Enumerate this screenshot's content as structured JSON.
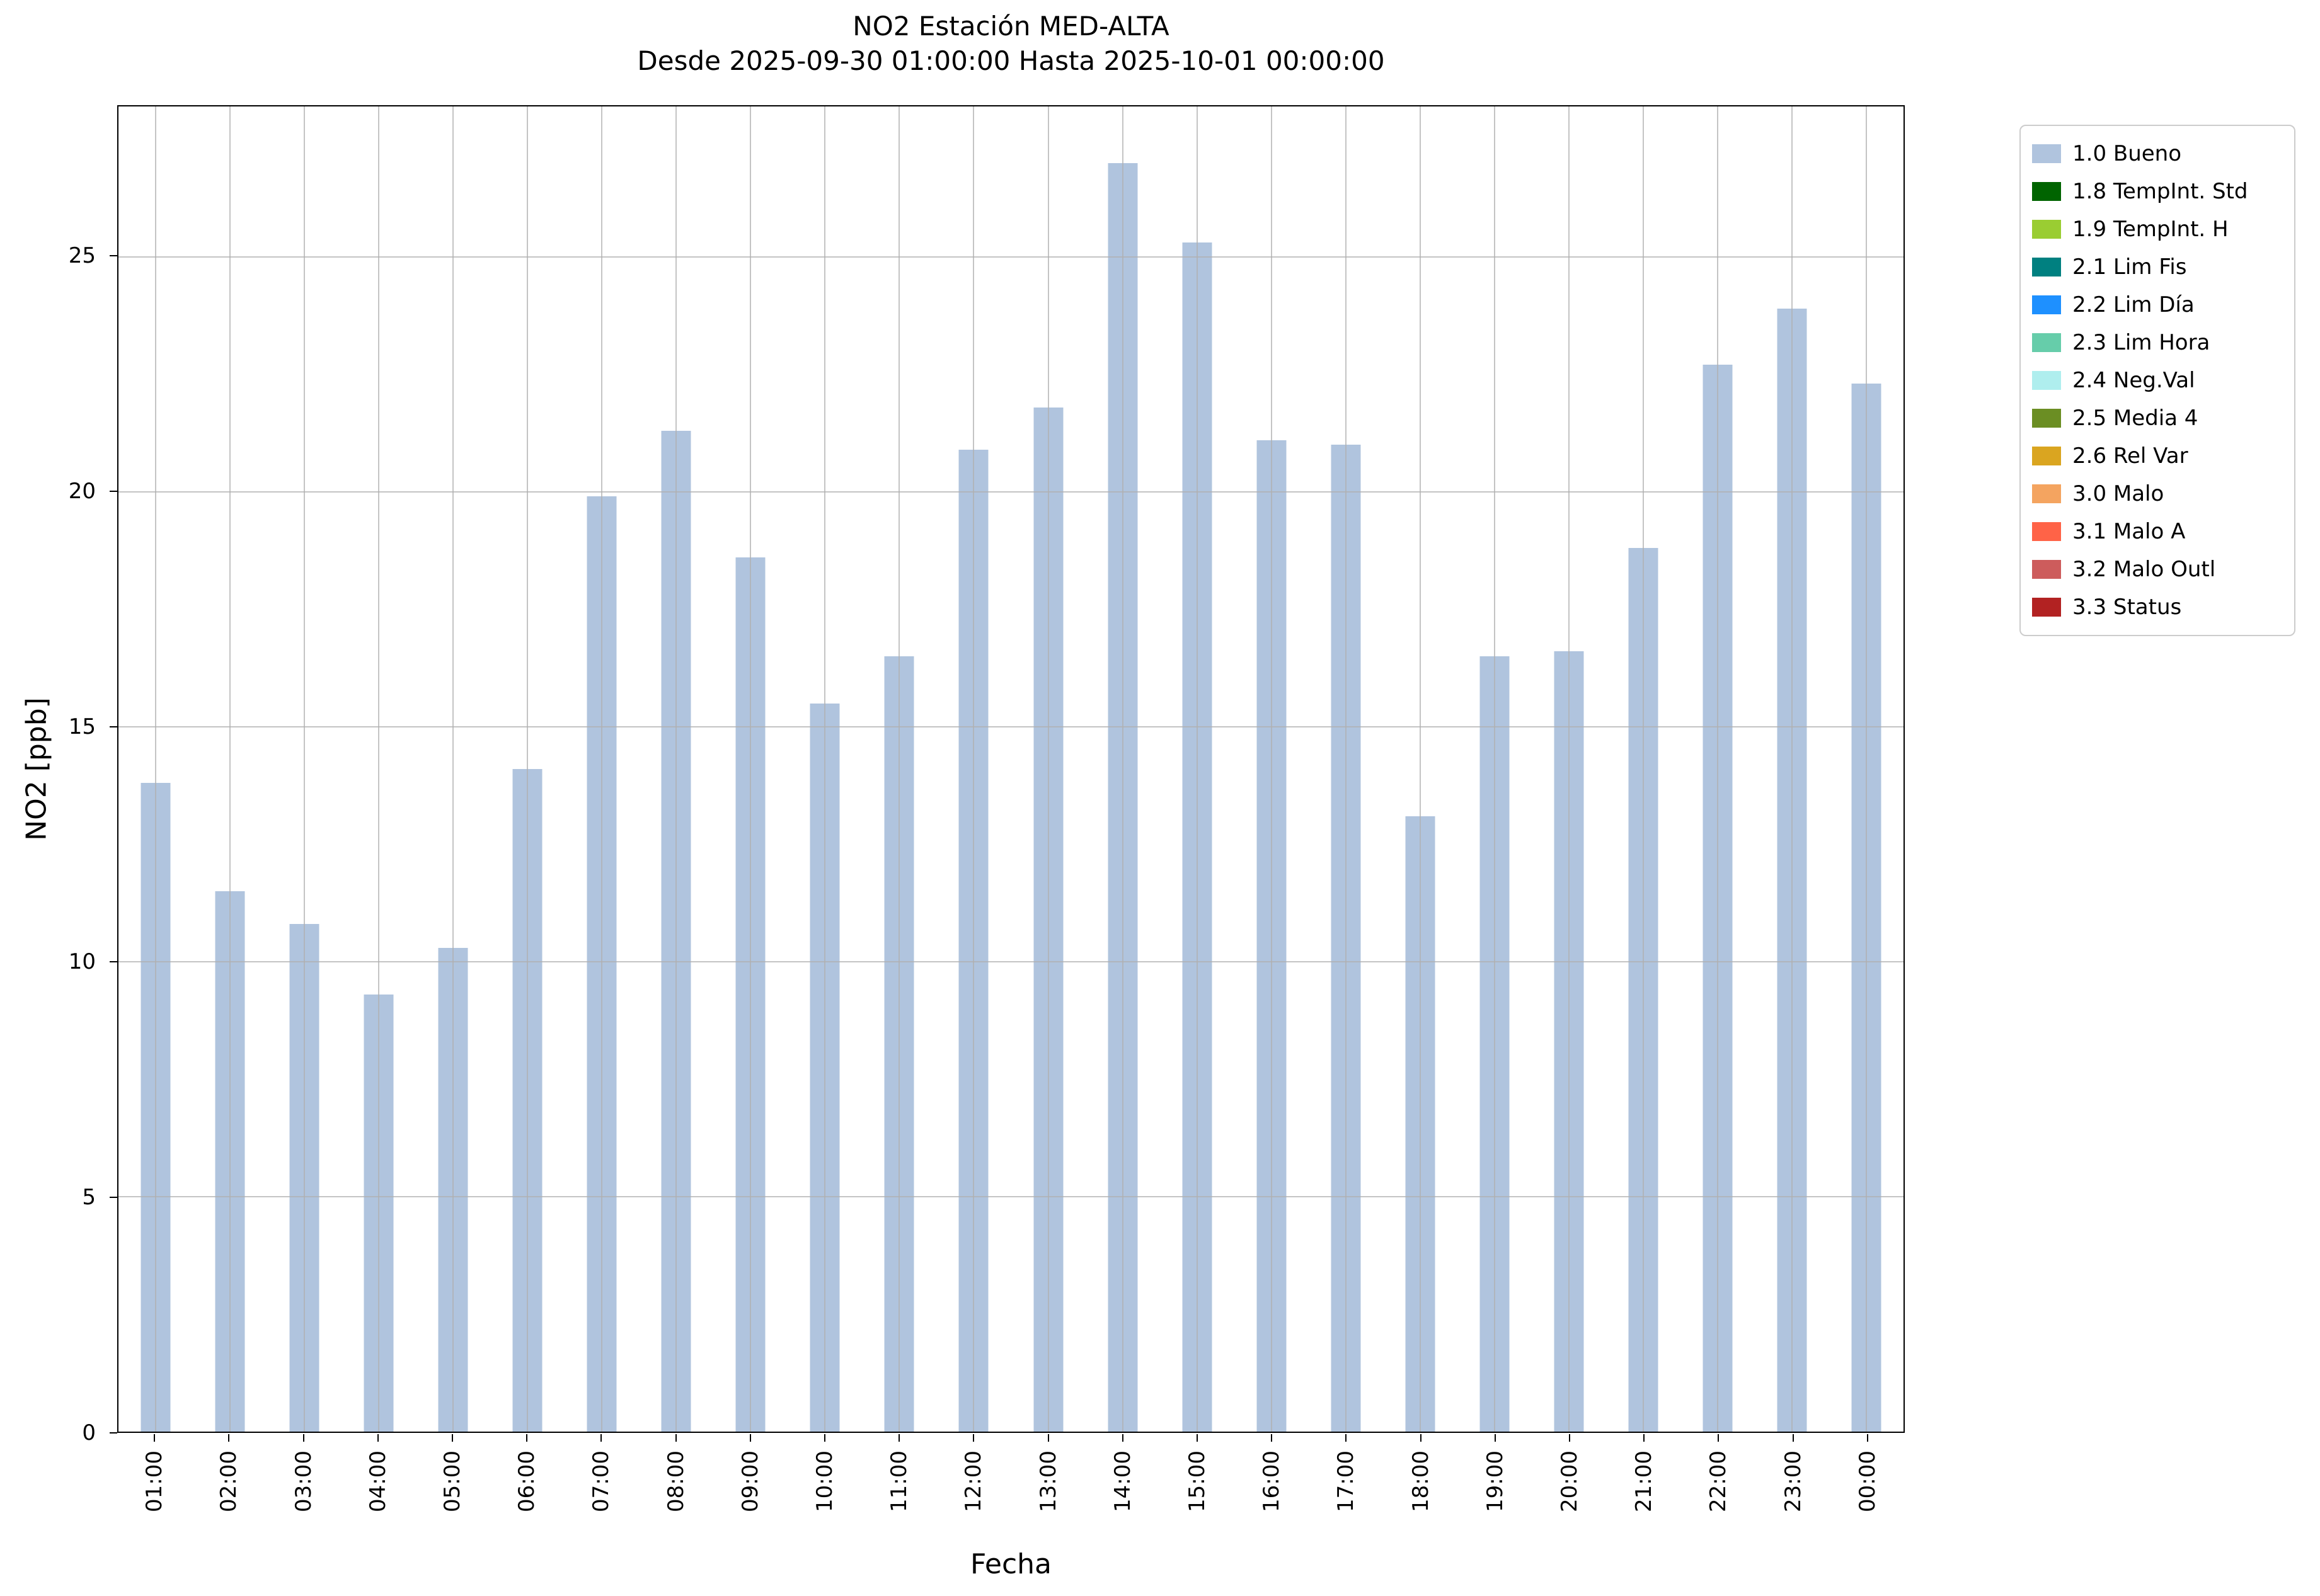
{
  "chart_data": {
    "type": "bar",
    "title": "NO2 Estación MED-ALTA",
    "subtitle": "Desde 2025-09-30 01:00:00 Hasta 2025-10-01 00:00:00",
    "xlabel": "Fecha",
    "ylabel": "NO2 [ppb]",
    "ylim": [
      0,
      28.2
    ],
    "yticks": [
      0,
      5,
      10,
      15,
      20,
      25
    ],
    "grid": true,
    "bar_color": "#b0c4de",
    "grid_color": "#b0b0b0",
    "categories": [
      "01:00",
      "02:00",
      "03:00",
      "04:00",
      "05:00",
      "06:00",
      "07:00",
      "08:00",
      "09:00",
      "10:00",
      "11:00",
      "12:00",
      "13:00",
      "14:00",
      "15:00",
      "16:00",
      "17:00",
      "18:00",
      "19:00",
      "20:00",
      "21:00",
      "22:00",
      "23:00",
      "00:00"
    ],
    "values": [
      13.8,
      11.5,
      10.8,
      9.3,
      10.3,
      14.1,
      19.9,
      21.3,
      18.6,
      15.5,
      16.5,
      20.9,
      21.8,
      27.0,
      25.3,
      21.1,
      21.0,
      13.1,
      16.5,
      16.6,
      18.8,
      22.7,
      23.9,
      22.3
    ],
    "legend_position": "upper right outside",
    "legend": [
      {
        "label": "1.0 Bueno",
        "color": "#b0c4de"
      },
      {
        "label": "1.8 TempInt. Std",
        "color": "#006400"
      },
      {
        "label": "1.9 TempInt. H",
        "color": "#9acd32"
      },
      {
        "label": "2.1 Lim Fis",
        "color": "#008080"
      },
      {
        "label": "2.2 Lim Día",
        "color": "#1e90ff"
      },
      {
        "label": "2.3 Lim Hora",
        "color": "#66cdaa"
      },
      {
        "label": "2.4 Neg.Val",
        "color": "#afeeee"
      },
      {
        "label": "2.5 Media 4",
        "color": "#6b8e23"
      },
      {
        "label": "2.6 Rel Var",
        "color": "#daa520"
      },
      {
        "label": "3.0 Malo",
        "color": "#f4a460"
      },
      {
        "label": "3.1 Malo A",
        "color": "#ff6347"
      },
      {
        "label": "3.2 Malo Outl",
        "color": "#cd5c5c"
      },
      {
        "label": "3.3 Status",
        "color": "#b22222"
      }
    ]
  }
}
